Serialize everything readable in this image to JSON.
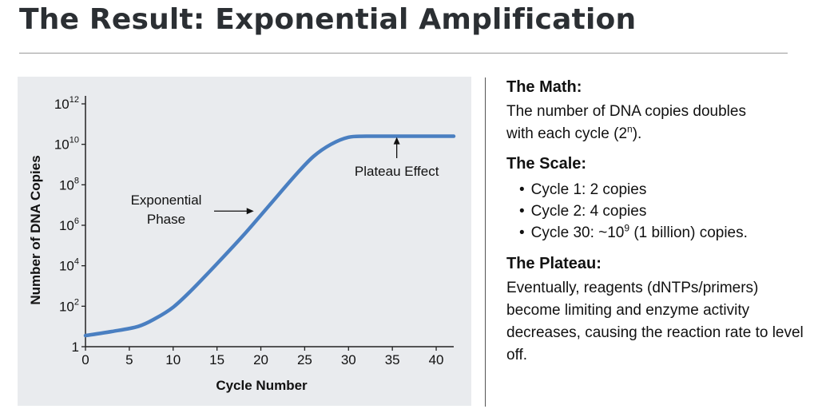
{
  "header": {
    "title": "The Result: Exponential Amplification"
  },
  "chart_data": {
    "type": "line",
    "xlabel": "Cycle Number",
    "ylabel": "Number of DNA Copies",
    "xlim": [
      0,
      42
    ],
    "x_ticks": [
      0,
      5,
      10,
      15,
      20,
      25,
      30,
      35,
      40
    ],
    "y_scale": "log10",
    "ylim_log10": [
      0,
      12
    ],
    "y_ticks": [
      {
        "log10": 12,
        "base": "10",
        "exp": "12"
      },
      {
        "log10": 10,
        "base": "10",
        "exp": "10"
      },
      {
        "log10": 8,
        "base": "10",
        "exp": "8"
      },
      {
        "log10": 6,
        "base": "10",
        "exp": "6"
      },
      {
        "log10": 4,
        "base": "10",
        "exp": "4"
      },
      {
        "log10": 2,
        "base": "10",
        "exp": "2"
      },
      {
        "log10": 0,
        "base": "1",
        "exp": ""
      }
    ],
    "series": [
      {
        "name": "DNA copies",
        "color": "#4a7fc1",
        "points_log10": [
          [
            0,
            0.55
          ],
          [
            3,
            0.75
          ],
          [
            6,
            1.0
          ],
          [
            8,
            1.4
          ],
          [
            10,
            1.95
          ],
          [
            12,
            2.75
          ],
          [
            15,
            4.1
          ],
          [
            18,
            5.5
          ],
          [
            21,
            7.0
          ],
          [
            24,
            8.5
          ],
          [
            26,
            9.4
          ],
          [
            28,
            10.0
          ],
          [
            30,
            10.35
          ],
          [
            32,
            10.4
          ],
          [
            36,
            10.4
          ],
          [
            42,
            10.4
          ]
        ]
      }
    ],
    "annotations": [
      {
        "label_lines": [
          "Exponential",
          "Phase"
        ],
        "arrow_to": [
          19.2,
          6.7
        ],
        "arrow_dir": "right"
      },
      {
        "label_lines": [
          "Plateau Effect"
        ],
        "arrow_to": [
          35.5,
          10.2
        ],
        "arrow_dir": "up"
      }
    ],
    "colors": {
      "plot_background": "#e9ebee",
      "axis": "#222222",
      "line": "#4a7fc1"
    }
  },
  "sidebar": {
    "math": {
      "title": "The Math:",
      "line1": "The number of DNA copies doubles",
      "line2_pre": "with each cycle (2",
      "line2_sup": "n",
      "line2_post": ")."
    },
    "scale": {
      "title": "The Scale:",
      "bullet": "•",
      "item1": "Cycle 1: 2 copies",
      "item2": "Cycle 2: 4 copies",
      "item3_pre": "Cycle 30: ~10",
      "item3_sup": "9",
      "item3_post": " (1 billion) copies."
    },
    "plateau": {
      "title": "The Plateau:",
      "text": "Eventually, reagents (dNTPs/primers) become limiting and enzyme activity decreases, causing the reaction rate to level off."
    }
  }
}
